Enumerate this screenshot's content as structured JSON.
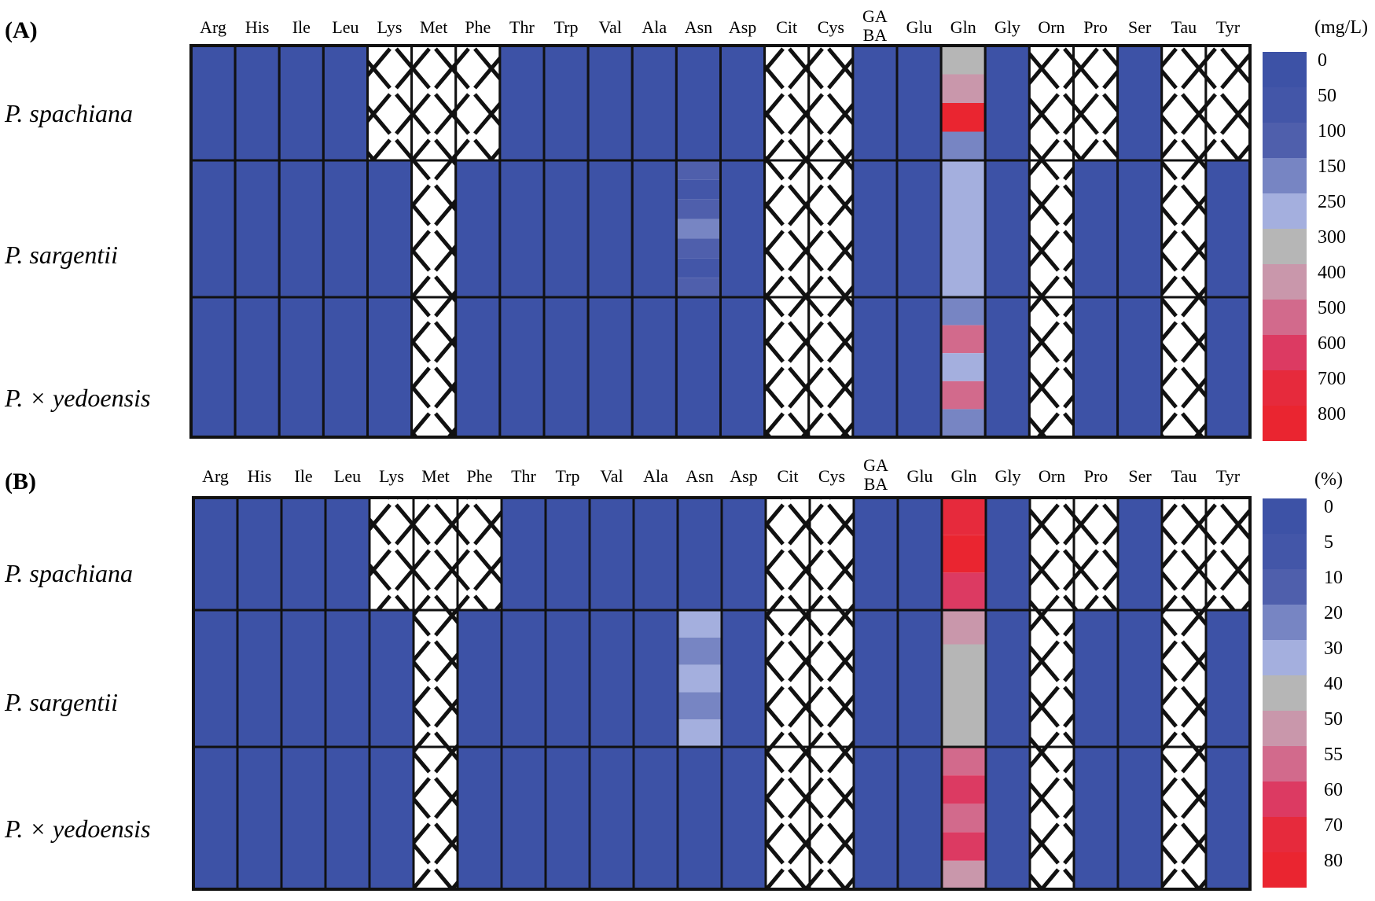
{
  "colors": {
    "border": "#111111",
    "scale": [
      "#3d52a6",
      "#4356a8",
      "#4f5fac",
      "#7785c3",
      "#a4afde",
      "#b6b6b6",
      "#c997ab",
      "#d26a8c",
      "#dc3a62",
      "#e62a3c",
      "#ea2530"
    ]
  },
  "chart_data": [
    {
      "type": "heatmap",
      "panel_label": "(A)",
      "unit": "(mg/L)",
      "columns": [
        "Arg",
        "His",
        "Ile",
        "Leu",
        "Lys",
        "Met",
        "Phe",
        "Thr",
        "Trp",
        "Val",
        "Ala",
        "Asn",
        "Asp",
        "Cit",
        "Cys",
        "GA BA",
        "Glu",
        "Gln",
        "Gly",
        "Orn",
        "Pro",
        "Ser",
        "Tau",
        "Tyr"
      ],
      "rows": [
        "P. spachiana",
        "P. sargentii",
        "P. × yedoensis"
      ],
      "legend_ticks": [
        "0",
        "50",
        "100",
        "150",
        "250",
        "300",
        "400",
        "500",
        "600",
        "700",
        "800"
      ],
      "missing_columns": [
        [
          "Lys",
          "Met",
          "Phe",
          "Cit",
          "Cys",
          "Orn",
          "Pro",
          "Tau",
          "Tyr"
        ],
        [
          "Met",
          "Cit",
          "Cys",
          "Orn",
          "Tau"
        ],
        [
          "Met",
          "Cit",
          "Cys",
          "Orn",
          "Tau"
        ]
      ],
      "cells": {
        "Asn": [
          [
            0
          ],
          [
            100,
            50,
            100,
            150,
            100,
            50,
            100
          ],
          [
            0
          ]
        ],
        "Gln": [
          [
            350,
            400,
            800,
            150
          ],
          [
            250
          ],
          [
            150,
            500,
            250,
            550,
            150
          ]
        ]
      }
    },
    {
      "type": "heatmap",
      "panel_label": "(B)",
      "unit": "(%)",
      "columns": [
        "Arg",
        "His",
        "Ile",
        "Leu",
        "Lys",
        "Met",
        "Phe",
        "Thr",
        "Trp",
        "Val",
        "Ala",
        "Asn",
        "Asp",
        "Cit",
        "Cys",
        "GA BA",
        "Glu",
        "Gln",
        "Gly",
        "Orn",
        "Pro",
        "Ser",
        "Tau",
        "Tyr"
      ],
      "rows": [
        "P. spachiana",
        "P. sargentii",
        "P. × yedoensis"
      ],
      "legend_ticks": [
        "0",
        "5",
        "10",
        "20",
        "30",
        "40",
        "50",
        "55",
        "60",
        "70",
        "80"
      ],
      "missing_columns": [
        [
          "Lys",
          "Met",
          "Phe",
          "Cit",
          "Cys",
          "Orn",
          "Pro",
          "Tau",
          "Tyr"
        ],
        [
          "Met",
          "Cit",
          "Cys",
          "Orn",
          "Tau"
        ],
        [
          "Met",
          "Cit",
          "Cys",
          "Orn",
          "Tau"
        ]
      ],
      "cells": {
        "Asn": [
          [
            0
          ],
          [
            30,
            20,
            30,
            25,
            30
          ],
          [
            0
          ]
        ],
        "Gln": [
          [
            70,
            80,
            60
          ],
          [
            50,
            45,
            40,
            45
          ],
          [
            55,
            60,
            58,
            60,
            50
          ]
        ]
      }
    }
  ]
}
